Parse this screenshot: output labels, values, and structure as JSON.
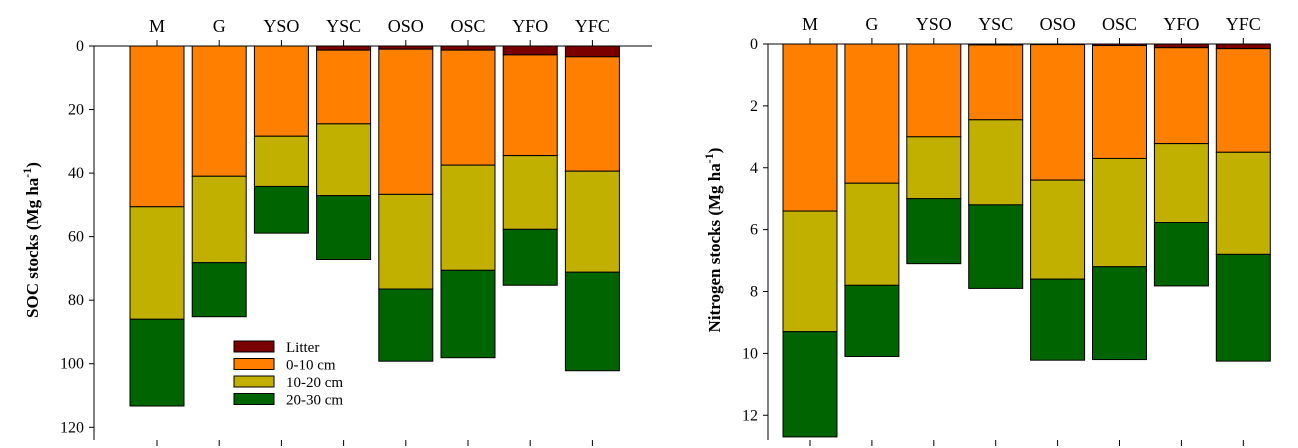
{
  "chart_data": [
    {
      "type": "bar",
      "stacked": true,
      "inverted_y": true,
      "categories": [
        "M",
        "G",
        "YSO",
        "YSC",
        "OSO",
        "OSC",
        "YFO",
        "YFC"
      ],
      "ylabel": "SOC stocks (Mg ha",
      "ylabel_sup": "-1",
      "ylabel_close": ")",
      "ylim": [
        0,
        124
      ],
      "yticks": [
        0,
        20,
        40,
        60,
        80,
        100,
        120
      ],
      "legend": "inside-lower-middle",
      "series": [
        {
          "name": "Litter",
          "color": "#7a0000",
          "values": [
            0,
            0,
            0,
            1.3,
            1.0,
            1.3,
            2.8,
            3.4
          ]
        },
        {
          "name": "0-10 cm",
          "color": "#ff8000",
          "values": [
            50.6,
            41.0,
            28.4,
            23.2,
            45.7,
            36.2,
            31.7,
            36.0
          ]
        },
        {
          "name": "10-20 cm",
          "color": "#c2b000",
          "values": [
            35.4,
            27.2,
            15.8,
            22.6,
            29.8,
            33.1,
            23.2,
            31.8
          ]
        },
        {
          "name": "20-30 cm",
          "color": "#006400",
          "values": [
            27.3,
            17.0,
            14.7,
            20.1,
            22.7,
            27.5,
            17.6,
            31.0
          ]
        }
      ]
    },
    {
      "type": "bar",
      "stacked": true,
      "inverted_y": true,
      "categories": [
        "M",
        "G",
        "YSO",
        "YSC",
        "OSO",
        "OSC",
        "YFO",
        "YFC"
      ],
      "ylabel": "Nitrogen stocks (Mg ha",
      "ylabel_sup": "-1",
      "ylabel_close": ")",
      "ylim": [
        0,
        12.8
      ],
      "yticks": [
        0,
        2,
        4,
        6,
        8,
        10,
        12
      ],
      "series": [
        {
          "name": "Litter",
          "color": "#7a0000",
          "values": [
            0,
            0,
            0,
            0.03,
            0.02,
            0.05,
            0.12,
            0.15
          ]
        },
        {
          "name": "0-10 cm",
          "color": "#ff8000",
          "values": [
            5.4,
            4.5,
            3.0,
            2.42,
            4.38,
            3.65,
            3.1,
            3.35
          ]
        },
        {
          "name": "10-20 cm",
          "color": "#c2b000",
          "values": [
            3.9,
            3.3,
            2.0,
            2.75,
            3.2,
            3.5,
            2.55,
            3.3
          ]
        },
        {
          "name": "20-30 cm",
          "color": "#006400",
          "values": [
            3.4,
            2.3,
            2.1,
            2.7,
            2.62,
            3.0,
            2.05,
            3.45
          ]
        }
      ]
    }
  ]
}
